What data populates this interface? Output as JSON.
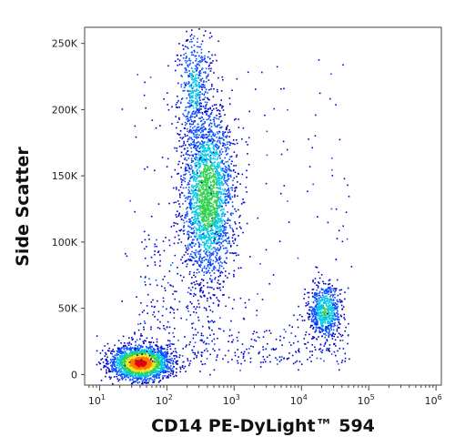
{
  "chart_data": {
    "type": "scatter",
    "subtype": "flow-cytometry density dot plot",
    "xlabel": "CD14 PE-DyLight™ 594",
    "ylabel": "Side Scatter",
    "x_scale": "log",
    "xlim": [
      6,
      1200000
    ],
    "ylim": [
      -8000,
      262144
    ],
    "grid": false,
    "x_ticks": [
      {
        "value": 10,
        "base": "10",
        "exp": "1"
      },
      {
        "value": 100,
        "base": "10",
        "exp": "2"
      },
      {
        "value": 1000,
        "base": "10",
        "exp": "3"
      },
      {
        "value": 10000,
        "base": "10",
        "exp": "4"
      },
      {
        "value": 100000,
        "base": "10",
        "exp": "5"
      },
      {
        "value": 1000000,
        "base": "10",
        "exp": "6"
      }
    ],
    "y_ticks": [
      {
        "value": 0,
        "label": "0"
      },
      {
        "value": 50000,
        "label": "50K"
      },
      {
        "value": 100000,
        "label": "100K"
      },
      {
        "value": 150000,
        "label": "150K"
      },
      {
        "value": 200000,
        "label": "200K"
      },
      {
        "value": 250000,
        "label": "250K"
      }
    ],
    "colormap": [
      "#0000c8",
      "#0a50ff",
      "#00c8e6",
      "#32d250",
      "#f0e614",
      "#ff7800",
      "#e60000"
    ],
    "populations": [
      {
        "center_x": 40,
        "center_y": 9000,
        "spread_log_x": 0.22,
        "spread_y": 6500,
        "count": 2200,
        "peak_density": 1.0
      },
      {
        "center_x": 400,
        "center_y": 135000,
        "spread_log_x": 0.2,
        "spread_y": 33000,
        "count": 2400,
        "peak_density": 0.55
      },
      {
        "center_x": 22000,
        "center_y": 48000,
        "spread_log_x": 0.12,
        "spread_y": 11000,
        "count": 650,
        "peak_density": 0.45
      },
      {
        "center_x": 250,
        "center_y": 215000,
        "spread_log_x": 0.13,
        "spread_y": 26000,
        "count": 500,
        "peak_density": 0.3
      }
    ],
    "sparse_events": 650
  }
}
